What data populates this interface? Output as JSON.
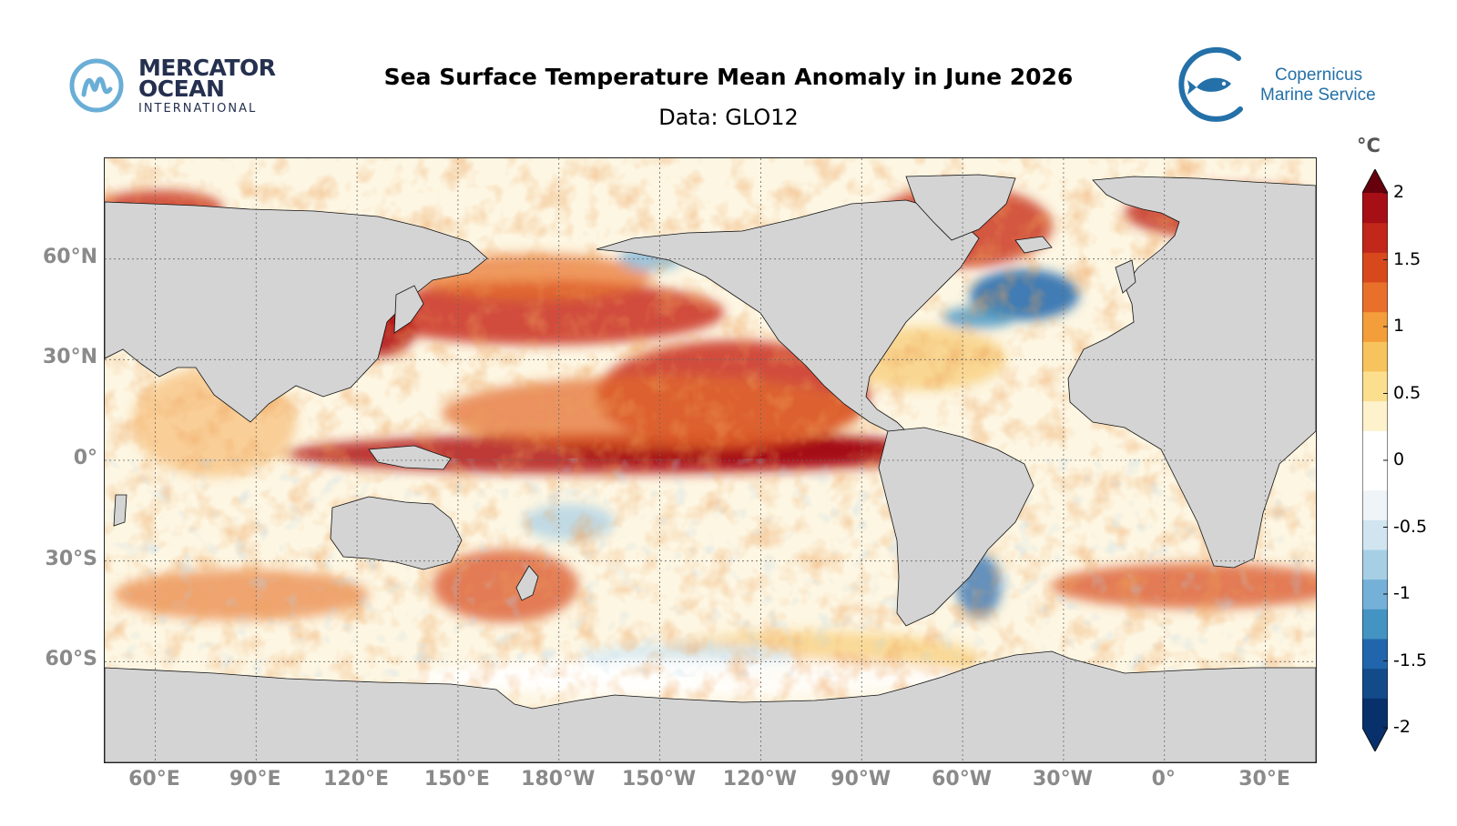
{
  "header": {
    "title": "Sea Surface Temperature Mean Anomaly in June 2026",
    "subtitle": "Data: GLO12"
  },
  "logo_left": {
    "line1": "MERCATOR",
    "line2": "OCEAN",
    "line3": "INTERNATIONAL",
    "color": "#25304f",
    "mark_color": "#6aaed6"
  },
  "logo_right": {
    "line1": "Copernicus",
    "line2": "Marine Service",
    "color": "#2470a8",
    "icon": "fish-icon"
  },
  "map": {
    "projection": "equirectangular",
    "lon_range": [
      45,
      405
    ],
    "lat_range": [
      -90,
      90
    ],
    "land_color": "#d4d4d4",
    "gridlines": "dotted",
    "lat_labels": [
      "60°N",
      "30°N",
      "0°",
      "30°S",
      "60°S"
    ],
    "lat_values": [
      60,
      30,
      0,
      -30,
      -60
    ],
    "lon_labels": [
      "60°E",
      "90°E",
      "120°E",
      "150°E",
      "180°W",
      "150°W",
      "120°W",
      "90°W",
      "60°W",
      "30°W",
      "0°",
      "30°E"
    ],
    "lon_values": [
      60,
      90,
      120,
      150,
      180,
      210,
      240,
      270,
      300,
      330,
      360,
      390
    ]
  },
  "colorbar": {
    "unit": "°C",
    "min": -2,
    "max": 2,
    "ticks": [
      "2",
      "1.5",
      "1",
      "0.5",
      "0",
      "-0.5",
      "-1",
      "-1.5",
      "-2"
    ],
    "tick_values": [
      2,
      1.5,
      1,
      0.5,
      0,
      -0.5,
      -1,
      -1.5,
      -2
    ],
    "colors_bottom_to_top": [
      "#08306b",
      "#134b8a",
      "#2166ac",
      "#4393c3",
      "#74b0d8",
      "#a6cfe6",
      "#d1e5f0",
      "#eef4f8",
      "#ffffff",
      "#ffffff",
      "#fdf2cc",
      "#fbdf8f",
      "#f7c35d",
      "#f39d3b",
      "#e8702a",
      "#d7481d",
      "#c1271a",
      "#a50f15"
    ],
    "extend": "both"
  }
}
